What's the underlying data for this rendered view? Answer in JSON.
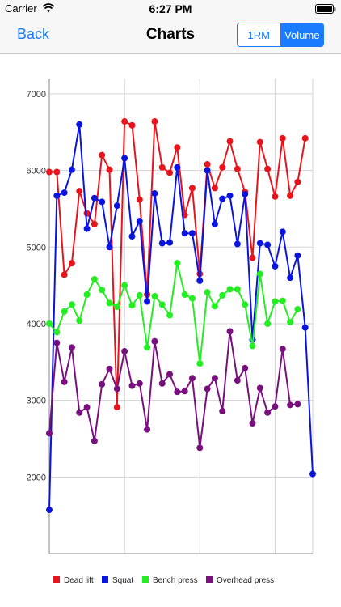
{
  "status_bar": {
    "carrier": "Carrier",
    "time": "6:27 PM"
  },
  "nav": {
    "back_label": "Back",
    "title": "Charts"
  },
  "segment": {
    "options": [
      "1RM",
      "Volume"
    ],
    "selected": "Volume"
  },
  "chart_data": {
    "type": "line",
    "title": "",
    "xlabel": "",
    "ylabel": "",
    "ylim": [
      1000,
      7200
    ],
    "yticks": [
      "2000",
      "3000",
      "4000",
      "5000",
      "6000",
      "7000"
    ],
    "grid": true,
    "legend_position": "bottom",
    "series": [
      {
        "name": "Dead lift",
        "color": "#e8141c",
        "points": [
          [
            0,
            5980
          ],
          [
            1,
            5980
          ],
          [
            2,
            4640
          ],
          [
            3,
            4790
          ],
          [
            4,
            5730
          ],
          [
            5,
            5440
          ],
          [
            6,
            5300
          ],
          [
            7,
            6200
          ],
          [
            8,
            6010
          ],
          [
            9,
            2910
          ],
          [
            10,
            6640
          ],
          [
            11,
            6590
          ],
          [
            12,
            5620
          ],
          [
            13,
            4380
          ],
          [
            14,
            6640
          ],
          [
            15,
            6040
          ],
          [
            16,
            5970
          ],
          [
            17,
            6300
          ],
          [
            18,
            5420
          ],
          [
            19,
            5770
          ],
          [
            20,
            4650
          ],
          [
            21,
            6080
          ],
          [
            22,
            5770
          ],
          [
            23,
            6040
          ],
          [
            24,
            6380
          ],
          [
            25,
            6020
          ],
          [
            26,
            5720
          ],
          [
            27,
            4860
          ],
          [
            28,
            6370
          ],
          [
            29,
            6020
          ],
          [
            30,
            5660
          ],
          [
            31,
            6420
          ],
          [
            32,
            5670
          ],
          [
            33,
            5850
          ],
          [
            34,
            6420
          ]
        ]
      },
      {
        "name": "Squat",
        "color": "#0a14e0",
        "points": [
          [
            0,
            1570
          ],
          [
            1,
            5670
          ],
          [
            2,
            5710
          ],
          [
            3,
            6010
          ],
          [
            4,
            6600
          ],
          [
            5,
            5240
          ],
          [
            6,
            5640
          ],
          [
            7,
            5590
          ],
          [
            8,
            5000
          ],
          [
            9,
            5540
          ],
          [
            10,
            6160
          ],
          [
            11,
            5140
          ],
          [
            12,
            5340
          ],
          [
            13,
            4290
          ],
          [
            14,
            5700
          ],
          [
            15,
            5050
          ],
          [
            16,
            5060
          ],
          [
            17,
            6040
          ],
          [
            18,
            5180
          ],
          [
            19,
            5180
          ],
          [
            20,
            4560
          ],
          [
            21,
            6000
          ],
          [
            22,
            5300
          ],
          [
            23,
            5630
          ],
          [
            24,
            5670
          ],
          [
            25,
            5040
          ],
          [
            26,
            5690
          ],
          [
            27,
            3790
          ],
          [
            28,
            5050
          ],
          [
            29,
            5030
          ],
          [
            30,
            4750
          ],
          [
            31,
            5200
          ],
          [
            32,
            4600
          ],
          [
            33,
            4890
          ],
          [
            34,
            3950
          ],
          [
            35,
            2040
          ]
        ]
      },
      {
        "name": "Bench press",
        "color": "#22ee22",
        "points": [
          [
            0,
            4000
          ],
          [
            1,
            3890
          ],
          [
            2,
            4160
          ],
          [
            3,
            4250
          ],
          [
            4,
            4040
          ],
          [
            5,
            4380
          ],
          [
            6,
            4580
          ],
          [
            7,
            4440
          ],
          [
            8,
            4270
          ],
          [
            9,
            4220
          ],
          [
            10,
            4500
          ],
          [
            11,
            4240
          ],
          [
            12,
            4370
          ],
          [
            13,
            3690
          ],
          [
            14,
            4360
          ],
          [
            15,
            4250
          ],
          [
            16,
            4110
          ],
          [
            17,
            4790
          ],
          [
            18,
            4380
          ],
          [
            19,
            4330
          ],
          [
            20,
            3480
          ],
          [
            21,
            4410
          ],
          [
            22,
            4230
          ],
          [
            23,
            4370
          ],
          [
            24,
            4450
          ],
          [
            25,
            4450
          ],
          [
            26,
            4250
          ],
          [
            27,
            3710
          ],
          [
            28,
            4650
          ],
          [
            29,
            4000
          ],
          [
            30,
            4290
          ],
          [
            31,
            4300
          ],
          [
            32,
            4020
          ],
          [
            33,
            4190
          ]
        ]
      },
      {
        "name": "Overhead press",
        "color": "#7a0f80",
        "points": [
          [
            0,
            2570
          ],
          [
            1,
            3750
          ],
          [
            2,
            3240
          ],
          [
            3,
            3690
          ],
          [
            4,
            2840
          ],
          [
            5,
            2910
          ],
          [
            6,
            2470
          ],
          [
            7,
            3210
          ],
          [
            8,
            3410
          ],
          [
            9,
            3150
          ],
          [
            10,
            3640
          ],
          [
            11,
            3190
          ],
          [
            12,
            3220
          ],
          [
            13,
            2620
          ],
          [
            14,
            3770
          ],
          [
            15,
            3220
          ],
          [
            16,
            3340
          ],
          [
            17,
            3110
          ],
          [
            18,
            3120
          ],
          [
            19,
            3290
          ],
          [
            20,
            2380
          ],
          [
            21,
            3150
          ],
          [
            22,
            3290
          ],
          [
            23,
            2860
          ],
          [
            24,
            3900
          ],
          [
            25,
            3260
          ],
          [
            26,
            3420
          ],
          [
            27,
            2700
          ],
          [
            28,
            3160
          ],
          [
            29,
            2840
          ],
          [
            30,
            2920
          ],
          [
            31,
            3670
          ],
          [
            32,
            2940
          ],
          [
            33,
            2950
          ]
        ]
      }
    ]
  }
}
